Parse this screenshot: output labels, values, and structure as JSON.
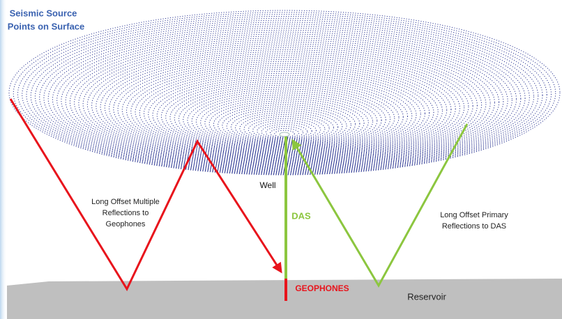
{
  "title": {
    "lines": [
      "Seismic Source",
      "Points on Surface"
    ]
  },
  "labels": {
    "well": "Well",
    "das": "DAS",
    "geophones": "GEOPHONES",
    "reservoir": "Reservoir",
    "multiple": [
      "Long Offset Multiple",
      "Reflections to",
      "Geophones"
    ],
    "primary": [
      "Long Offset Primary",
      "Reflections to DAS"
    ]
  }
}
